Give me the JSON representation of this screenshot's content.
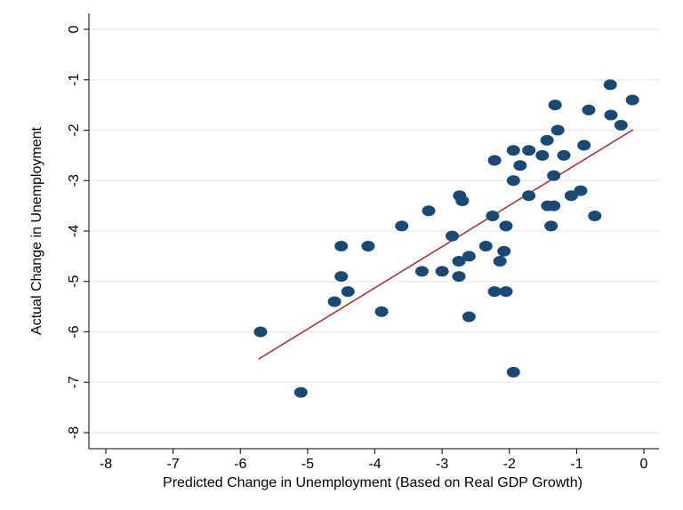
{
  "chart_data": {
    "type": "scatter",
    "title": "",
    "xlabel": "Predicted Change in Unemployment (Based on Real GDP Growth)",
    "ylabel": "Actual Change in Unemployment",
    "xlim": [
      -8,
      0
    ],
    "ylim": [
      -8,
      0
    ],
    "xticks": [
      -8,
      -7,
      -6,
      -5,
      -4,
      -3,
      -2,
      -1,
      0
    ],
    "yticks": [
      0,
      -1,
      -2,
      -3,
      -4,
      -5,
      -6,
      -7,
      -8
    ],
    "grid": "horizontal",
    "colors": {
      "points": "#1a4a73",
      "fit_line": "#a3393b",
      "grid": "#e6eef2"
    },
    "points": [
      [
        -5.7,
        -6.0
      ],
      [
        -5.1,
        -7.2
      ],
      [
        -4.6,
        -5.4
      ],
      [
        -4.5,
        -4.3
      ],
      [
        -4.5,
        -4.9
      ],
      [
        -4.4,
        -5.2
      ],
      [
        -4.1,
        -4.3
      ],
      [
        -3.9,
        -5.6
      ],
      [
        -3.6,
        -3.9
      ],
      [
        -3.3,
        -4.8
      ],
      [
        -3.2,
        -3.6
      ],
      [
        -3.0,
        -4.8
      ],
      [
        -2.85,
        -4.1
      ],
      [
        -2.75,
        -4.9
      ],
      [
        -2.75,
        -4.6
      ],
      [
        -2.74,
        -3.3
      ],
      [
        -2.7,
        -3.4
      ],
      [
        -2.6,
        -4.5
      ],
      [
        -2.6,
        -5.7
      ],
      [
        -2.35,
        -4.3
      ],
      [
        -2.25,
        -3.7
      ],
      [
        -2.22,
        -2.6
      ],
      [
        -2.22,
        -5.2
      ],
      [
        -2.14,
        -4.6
      ],
      [
        -2.08,
        -4.4
      ],
      [
        -2.05,
        -3.9
      ],
      [
        -2.05,
        -5.2
      ],
      [
        -1.94,
        -2.4
      ],
      [
        -1.94,
        -3.0
      ],
      [
        -1.94,
        -6.8
      ],
      [
        -1.84,
        -2.7
      ],
      [
        -1.71,
        -2.4
      ],
      [
        -1.71,
        -3.3
      ],
      [
        -1.51,
        -2.5
      ],
      [
        -1.44,
        -2.2
      ],
      [
        -1.43,
        -3.5
      ],
      [
        -1.38,
        -3.9
      ],
      [
        -1.34,
        -2.9
      ],
      [
        -1.34,
        -3.5
      ],
      [
        -1.32,
        -1.5
      ],
      [
        -1.28,
        -2.0
      ],
      [
        -1.19,
        -2.5
      ],
      [
        -1.08,
        -3.3
      ],
      [
        -0.94,
        -3.2
      ],
      [
        -0.89,
        -2.3
      ],
      [
        -0.82,
        -1.6
      ],
      [
        -0.73,
        -3.7
      ],
      [
        -0.5,
        -1.1
      ],
      [
        -0.49,
        -1.7
      ],
      [
        -0.34,
        -1.9
      ],
      [
        -0.17,
        -1.4
      ]
    ],
    "fit_line": {
      "x": [
        -5.73,
        -0.16
      ],
      "y": [
        -6.54,
        -1.99
      ]
    }
  }
}
